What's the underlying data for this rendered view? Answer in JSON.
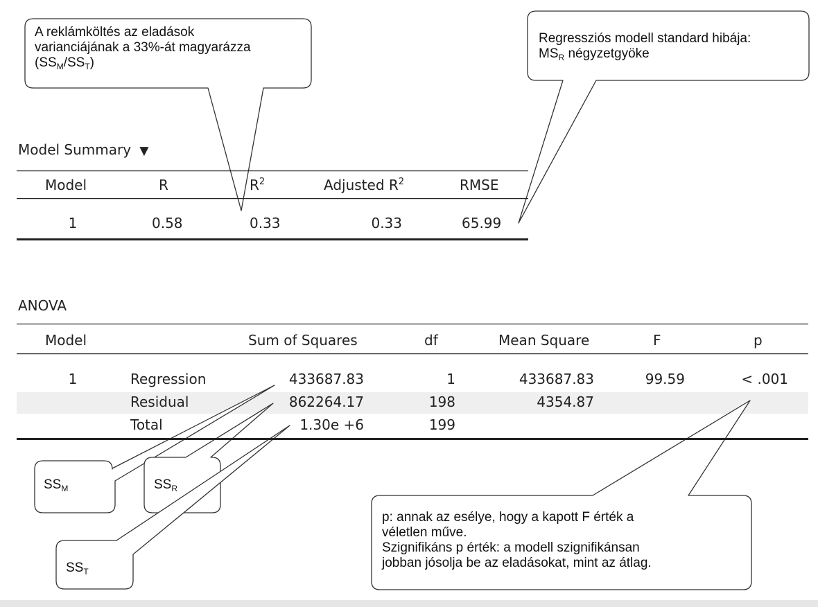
{
  "callouts": {
    "r2_note": {
      "line1": "A reklámköltés az eladások",
      "line2": "varianciájának a 33%-át magyarázza",
      "line3_pre": "(SS",
      "line3_sub1": "M",
      "line3_mid": "/SS",
      "line3_sub2": "T",
      "line3_post": ")"
    },
    "rmse_note": {
      "line1": "Regressziós modell standard hibája:",
      "line2_pre": "MS",
      "line2_sub": "R",
      "line2_post": " négyzetgyöke"
    },
    "ssm": {
      "pre": "SS",
      "sub": "M"
    },
    "ssr": {
      "pre": "SS",
      "sub": "R"
    },
    "sst": {
      "pre": "SS",
      "sub": "T"
    },
    "p_note": {
      "line1": "p: annak az esélye, hogy a kapott F érték a",
      "line2": "véletlen műve.",
      "line3": "Szignifikáns p érték: a modell szignifikánsan",
      "line4": "jobban jósolja be az eladásokat, mint az átlag."
    }
  },
  "model_summary": {
    "title": "Model Summary",
    "toggle_icon": "triangle-down-icon",
    "toggle_glyph": "▼",
    "headers": {
      "model": "Model",
      "r": "R",
      "r2_base": "R",
      "r2_sup": "2",
      "adj_base": "Adjusted R",
      "adj_sup": "2",
      "rmse": "RMSE"
    },
    "row": {
      "model": "1",
      "r": "0.58",
      "r2": "0.33",
      "adj": "0.33",
      "rmse": "65.99"
    }
  },
  "anova": {
    "title": "ANOVA",
    "headers": {
      "model": "Model",
      "ss": "Sum of Squares",
      "df": "df",
      "ms": "Mean Square",
      "f": "F",
      "p": "p"
    },
    "rows": [
      {
        "model": "1",
        "label": "Regression",
        "ss": "433687.83",
        "df": "1",
        "ms": "433687.83",
        "f": "99.59",
        "p": "< .001"
      },
      {
        "model": "",
        "label": "Residual",
        "ss": "862264.17",
        "df": "198",
        "ms": "4354.87",
        "f": "",
        "p": ""
      },
      {
        "model": "",
        "label": "Total",
        "ss": "1.30e +6",
        "df": "199",
        "ms": "",
        "f": "",
        "p": ""
      }
    ]
  }
}
